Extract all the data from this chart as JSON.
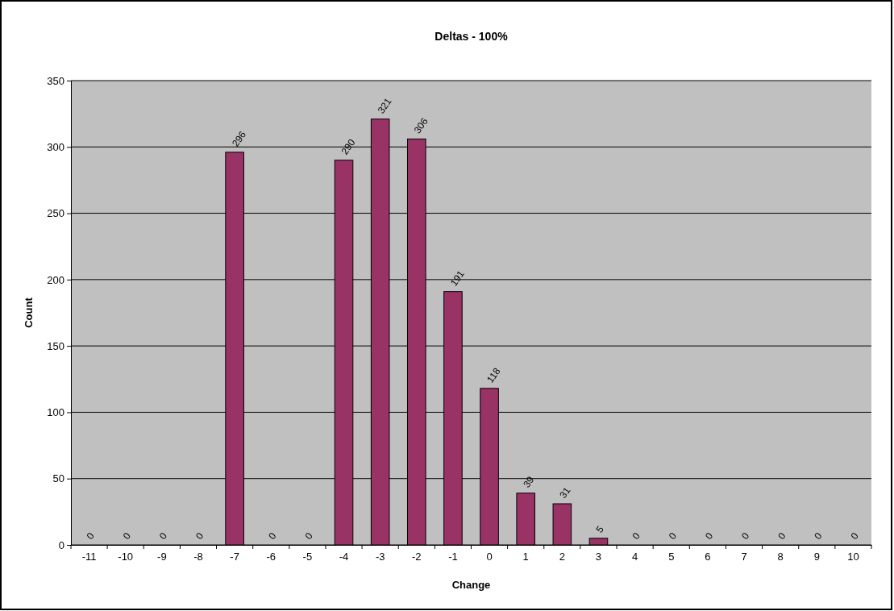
{
  "chart_data": {
    "type": "bar",
    "title": "Deltas - 100%",
    "xlabel": "Change",
    "ylabel": "Count",
    "categories": [
      "-11",
      "-10",
      "-9",
      "-8",
      "-7",
      "-6",
      "-5",
      "-4",
      "-3",
      "-2",
      "-1",
      "0",
      "1",
      "2",
      "3",
      "4",
      "5",
      "6",
      "7",
      "8",
      "9",
      "10"
    ],
    "values": [
      0,
      0,
      0,
      0,
      296,
      0,
      0,
      290,
      321,
      306,
      191,
      118,
      39,
      31,
      5,
      0,
      0,
      0,
      0,
      0,
      0,
      0
    ],
    "color": "#993366",
    "ylim": [
      0,
      350
    ],
    "yticks": [
      0,
      50,
      100,
      150,
      200,
      250,
      300,
      350
    ],
    "grid": "y",
    "data_labels": true
  }
}
